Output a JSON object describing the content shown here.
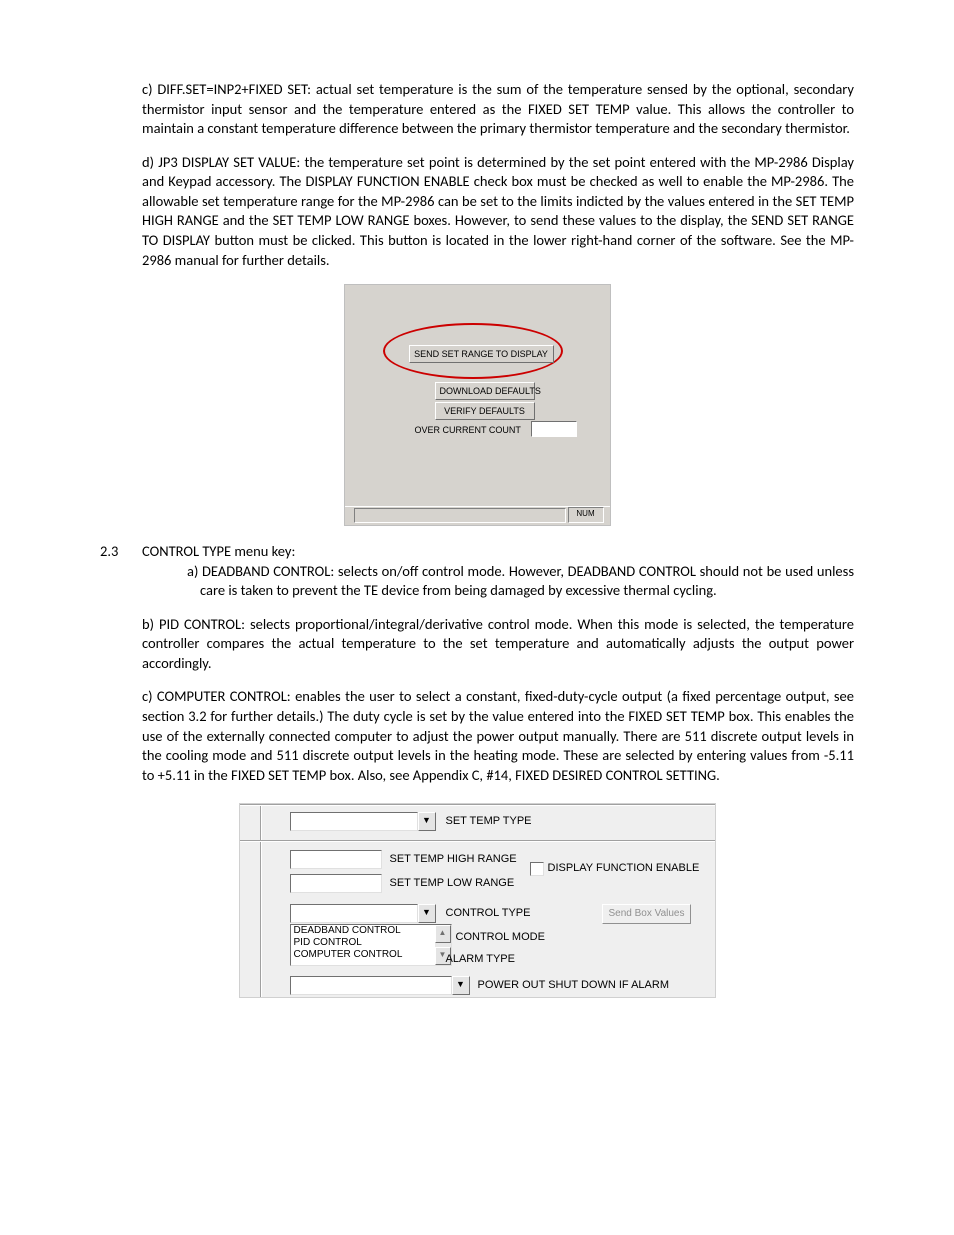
{
  "para_c": "c) DIFF.SET=INP2+FIXED SET:  actual set temperature is the sum of the temperature sensed by the optional, secondary thermistor input sensor and the temperature entered as the FIXED SET TEMP value.  This allows the controller to maintain a constant temperature difference between the primary thermistor temperature and the secondary thermistor.",
  "para_d": "d) JP3 DISPLAY SET VALUE: the temperature set point is determined by the set point entered with the MP-2986 Display and Keypad accessory. The DISPLAY FUNCTION ENABLE check box must be checked as well to enable the MP-2986. The allowable set temperature range for the MP-2986 can be set to the limits indicted by the values entered in the SET TEMP HIGH RANGE and the SET TEMP LOW RANGE boxes. However, to send these values to the display, the SEND SET RANGE TO DISPLAY button must be clicked. This button is located in the lower right-hand corner of the software. See the MP-2986 manual for further details.",
  "shot1": {
    "btn_send": "SEND SET RANGE TO DISPLAY",
    "btn_download": "DOWNLOAD DEFAULTS",
    "btn_verify": "VERIFY DEFAULTS",
    "occ_label": "OVER CURRENT COUNT",
    "num": "NUM"
  },
  "sec23_num": "2.3",
  "sec23_title": "CONTROL TYPE menu key:",
  "sec23_a": "a) DEADBAND CONTROL:  selects on/off control mode. However, DEADBAND CONTROL should not be used unless care is taken to prevent the TE device from being damaged by excessive thermal cycling.",
  "sec23_b": "b) PID CONTROL: selects proportional/integral/derivative control mode. When this mode is selected, the temperature controller compares the actual temperature to the set temperature and automatically adjusts the output power accordingly.",
  "sec23_c": "c) COMPUTER CONTROL:  enables the user to select a constant, fixed-duty-cycle output (a fixed percentage output, see section 3.2 for further details.) The duty cycle is set by the value entered into the FIXED SET TEMP box.  This enables the use of the externally connected computer to adjust the power output manually. There are 511 discrete output levels in the cooling mode and 511 discrete output levels in the heating mode.  These are selected by entering values from -5.11 to +5.11 in the FIXED SET TEMP box.  Also, see Appendix C, #14, FIXED DESIRED CONTROL SETTING.",
  "shot2": {
    "set_temp_type": "SET TEMP TYPE",
    "set_temp_high": "SET TEMP HIGH RANGE",
    "set_temp_low": "SET TEMP LOW RANGE",
    "display_enable": "DISPLAY FUNCTION ENABLE",
    "control_type": "CONTROL TYPE",
    "send_box": "Send Box Values",
    "control_mode": "CONTROL MODE",
    "alarm_type": "ALARM TYPE",
    "power_out": "POWER OUT SHUT DOWN IF ALARM",
    "list_items": [
      "DEADBAND CONTROL",
      "PID CONTROL",
      "COMPUTER CONTROL"
    ]
  }
}
